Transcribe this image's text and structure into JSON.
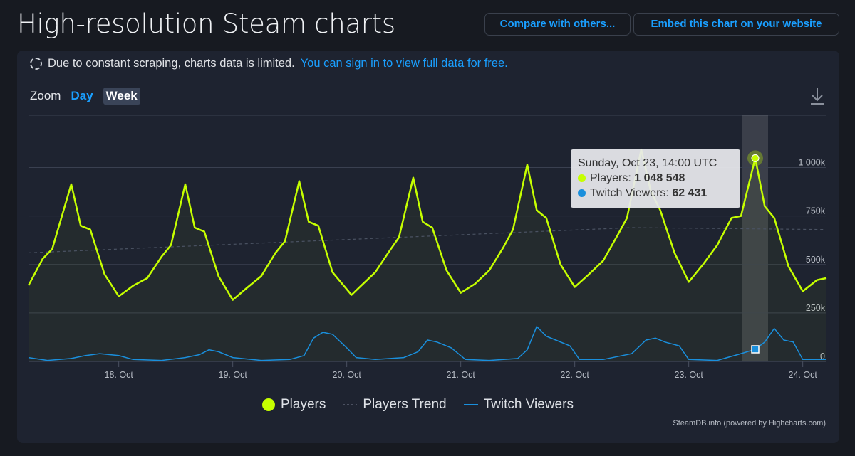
{
  "header": {
    "title": "High-resolution Steam charts",
    "compare_label": "Compare with others...",
    "embed_label": "Embed this chart on your website"
  },
  "notice": {
    "text": "Due to constant scraping, charts data is limited.",
    "link": "You can sign in to view full data for free."
  },
  "zoom": {
    "label": "Zoom",
    "options": [
      "Day",
      "Week"
    ],
    "selected": "Week"
  },
  "tooltip": {
    "title": "Sunday, Oct 23, 14:00 UTC",
    "players_label": "Players:",
    "players_value": "1 048 548",
    "twitch_label": "Twitch Viewers:",
    "twitch_value": "62 431"
  },
  "credits": "SteamDB.info (powered by Highcharts.com)",
  "colors": {
    "players": "#c6ff00",
    "twitch": "#1a8fdc",
    "trend": "#5a6070",
    "accent": "#1a9fff"
  },
  "chart_data": {
    "type": "line",
    "x_range": [
      "Oct 17 05:00",
      "Oct 24 05:00"
    ],
    "ylim": [
      0,
      1270000
    ],
    "y_ticks": [
      {
        "v": 0,
        "label": "0"
      },
      {
        "v": 250000,
        "label": "250k"
      },
      {
        "v": 500000,
        "label": "500k"
      },
      {
        "v": 750000,
        "label": "750k"
      },
      {
        "v": 1000000,
        "label": "1 000k"
      }
    ],
    "x_ticks": [
      "18. Oct",
      "19. Oct",
      "20. Oct",
      "21. Oct",
      "22. Oct",
      "23. Oct",
      "24. Oct"
    ],
    "grid": true,
    "legend": "bottom",
    "highlighted_point": "Oct 23 14:00",
    "series": [
      {
        "name": "Players",
        "points": [
          [
            "Oct 17 05:00",
            392000
          ],
          [
            "Oct 17 08:00",
            530000
          ],
          [
            "Oct 17 10:00",
            580000
          ],
          [
            "Oct 17 14:00",
            914000
          ],
          [
            "Oct 17 16:00",
            700000
          ],
          [
            "Oct 17 18:00",
            680000
          ],
          [
            "Oct 17 21:00",
            450000
          ],
          [
            "Oct 18 00:00",
            336000
          ],
          [
            "Oct 18 03:00",
            390000
          ],
          [
            "Oct 18 06:00",
            430000
          ],
          [
            "Oct 18 09:00",
            540000
          ],
          [
            "Oct 18 11:00",
            600000
          ],
          [
            "Oct 18 14:00",
            914000
          ],
          [
            "Oct 18 16:00",
            690000
          ],
          [
            "Oct 18 18:00",
            670000
          ],
          [
            "Oct 18 21:00",
            440000
          ],
          [
            "Oct 19 00:00",
            317000
          ],
          [
            "Oct 19 03:00",
            380000
          ],
          [
            "Oct 19 06:00",
            440000
          ],
          [
            "Oct 19 09:00",
            560000
          ],
          [
            "Oct 19 11:00",
            620000
          ],
          [
            "Oct 19 14:00",
            930000
          ],
          [
            "Oct 19 16:00",
            720000
          ],
          [
            "Oct 19 18:00",
            700000
          ],
          [
            "Oct 19 21:00",
            460000
          ],
          [
            "Oct 20 01:00",
            343000
          ],
          [
            "Oct 20 03:00",
            390000
          ],
          [
            "Oct 20 06:00",
            460000
          ],
          [
            "Oct 20 09:00",
            570000
          ],
          [
            "Oct 20 11:00",
            640000
          ],
          [
            "Oct 20 14:00",
            948000
          ],
          [
            "Oct 20 16:00",
            720000
          ],
          [
            "Oct 20 18:00",
            690000
          ],
          [
            "Oct 20 21:00",
            470000
          ],
          [
            "Oct 21 00:00",
            354000
          ],
          [
            "Oct 21 03:00",
            400000
          ],
          [
            "Oct 21 06:00",
            470000
          ],
          [
            "Oct 21 09:00",
            590000
          ],
          [
            "Oct 21 11:00",
            680000
          ],
          [
            "Oct 21 14:00",
            1015000
          ],
          [
            "Oct 21 16:00",
            780000
          ],
          [
            "Oct 21 18:00",
            740000
          ],
          [
            "Oct 21 21:00",
            500000
          ],
          [
            "Oct 22 00:00",
            384000
          ],
          [
            "Oct 22 03:00",
            450000
          ],
          [
            "Oct 22 06:00",
            520000
          ],
          [
            "Oct 22 09:00",
            650000
          ],
          [
            "Oct 22 11:00",
            740000
          ],
          [
            "Oct 22 14:00",
            1093000
          ],
          [
            "Oct 22 16:00",
            880000
          ],
          [
            "Oct 22 18:00",
            780000
          ],
          [
            "Oct 22 21:00",
            560000
          ],
          [
            "Oct 23 00:00",
            410000
          ],
          [
            "Oct 23 03:00",
            500000
          ],
          [
            "Oct 23 06:00",
            600000
          ],
          [
            "Oct 23 09:00",
            740000
          ],
          [
            "Oct 23 11:00",
            750000
          ],
          [
            "Oct 23 14:00",
            1048548
          ],
          [
            "Oct 23 16:00",
            800000
          ],
          [
            "Oct 23 18:00",
            740000
          ],
          [
            "Oct 23 21:00",
            490000
          ],
          [
            "Oct 24 00:00",
            362000
          ],
          [
            "Oct 24 03:00",
            420000
          ],
          [
            "Oct 24 05:00",
            430000
          ]
        ]
      },
      {
        "name": "Players Trend",
        "points": [
          [
            "Oct 17 05:00",
            560000
          ],
          [
            "Oct 22 12:00",
            690000
          ],
          [
            "Oct 24 05:00",
            680000
          ]
        ]
      },
      {
        "name": "Twitch Viewers",
        "points": [
          [
            "Oct 17 05:00",
            20000
          ],
          [
            "Oct 17 09:00",
            5000
          ],
          [
            "Oct 17 14:00",
            15000
          ],
          [
            "Oct 17 17:00",
            30000
          ],
          [
            "Oct 17 20:00",
            40000
          ],
          [
            "Oct 18 00:00",
            30000
          ],
          [
            "Oct 18 03:00",
            10000
          ],
          [
            "Oct 18 09:00",
            5000
          ],
          [
            "Oct 18 14:00",
            20000
          ],
          [
            "Oct 18 17:00",
            35000
          ],
          [
            "Oct 18 19:00",
            60000
          ],
          [
            "Oct 18 21:00",
            50000
          ],
          [
            "Oct 19 00:00",
            20000
          ],
          [
            "Oct 19 06:00",
            5000
          ],
          [
            "Oct 19 12:00",
            10000
          ],
          [
            "Oct 19 15:00",
            30000
          ],
          [
            "Oct 19 17:00",
            120000
          ],
          [
            "Oct 19 19:00",
            150000
          ],
          [
            "Oct 19 21:00",
            140000
          ],
          [
            "Oct 20 00:00",
            70000
          ],
          [
            "Oct 20 02:00",
            20000
          ],
          [
            "Oct 20 06:00",
            10000
          ],
          [
            "Oct 20 12:00",
            20000
          ],
          [
            "Oct 20 15:00",
            50000
          ],
          [
            "Oct 20 17:00",
            110000
          ],
          [
            "Oct 20 19:00",
            100000
          ],
          [
            "Oct 20 22:00",
            70000
          ],
          [
            "Oct 21 01:00",
            10000
          ],
          [
            "Oct 21 06:00",
            5000
          ],
          [
            "Oct 21 12:00",
            15000
          ],
          [
            "Oct 21 14:00",
            60000
          ],
          [
            "Oct 21 16:00",
            180000
          ],
          [
            "Oct 21 18:00",
            130000
          ],
          [
            "Oct 21 20:00",
            110000
          ],
          [
            "Oct 21 23:00",
            80000
          ],
          [
            "Oct 22 01:00",
            10000
          ],
          [
            "Oct 22 06:00",
            10000
          ],
          [
            "Oct 22 12:00",
            40000
          ],
          [
            "Oct 22 15:00",
            110000
          ],
          [
            "Oct 22 17:00",
            120000
          ],
          [
            "Oct 22 19:00",
            100000
          ],
          [
            "Oct 22 22:00",
            80000
          ],
          [
            "Oct 23 00:00",
            10000
          ],
          [
            "Oct 23 06:00",
            5000
          ],
          [
            "Oct 23 11:00",
            40000
          ],
          [
            "Oct 23 14:00",
            62431
          ],
          [
            "Oct 23 16:00",
            100000
          ],
          [
            "Oct 23 18:00",
            170000
          ],
          [
            "Oct 23 20:00",
            110000
          ],
          [
            "Oct 23 22:00",
            100000
          ],
          [
            "Oct 24 00:00",
            10000
          ],
          [
            "Oct 24 05:00",
            10000
          ]
        ]
      }
    ]
  }
}
